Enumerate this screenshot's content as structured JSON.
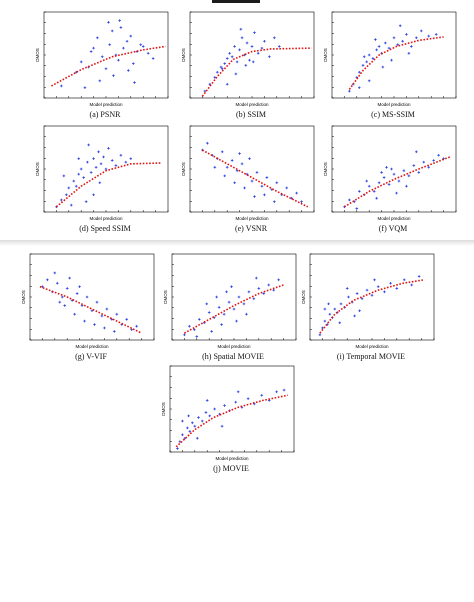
{
  "colors": {
    "points": "#2b3fe0",
    "fit": "#e01414",
    "axis": "#000000"
  },
  "chart_data": [
    {
      "type": "scatter",
      "caption": "(a) PSNR",
      "xlabel": "Model prediction",
      "ylabel": "DMOS",
      "xlim": [
        0,
        1
      ],
      "ylim": [
        0,
        1
      ],
      "curve": {
        "x": [
          0.06,
          0.3,
          0.55,
          0.8,
          0.98
        ],
        "y": [
          0.14,
          0.33,
          0.48,
          0.56,
          0.6
        ]
      },
      "points": {
        "x": [
          0.14,
          0.26,
          0.3,
          0.36,
          0.4,
          0.43,
          0.47,
          0.5,
          0.53,
          0.55,
          0.58,
          0.6,
          0.62,
          0.64,
          0.67,
          0.7,
          0.72,
          0.75,
          0.78,
          0.8,
          0.84,
          0.88,
          0.45,
          0.56,
          0.68,
          0.52,
          0.61,
          0.73,
          0.38,
          0.33
        ],
        "y": [
          0.14,
          0.3,
          0.42,
          0.36,
          0.58,
          0.7,
          0.48,
          0.34,
          0.62,
          0.78,
          0.5,
          0.44,
          0.82,
          0.58,
          0.66,
          0.72,
          0.4,
          0.54,
          0.62,
          0.6,
          0.52,
          0.46,
          0.2,
          0.26,
          0.32,
          0.88,
          0.9,
          0.18,
          0.54,
          0.12
        ]
      }
    },
    {
      "type": "scatter",
      "caption": "(b) SSIM",
      "xlabel": "Model prediction",
      "ylabel": "DMOS",
      "xlim": [
        0,
        1
      ],
      "ylim": [
        0,
        1
      ],
      "curve": {
        "x": [
          0.1,
          0.22,
          0.35,
          0.5,
          0.65,
          0.98
        ],
        "y": [
          0.02,
          0.25,
          0.45,
          0.54,
          0.57,
          0.58
        ]
      },
      "points": {
        "x": [
          0.12,
          0.16,
          0.2,
          0.22,
          0.25,
          0.28,
          0.3,
          0.32,
          0.34,
          0.36,
          0.38,
          0.4,
          0.42,
          0.44,
          0.46,
          0.48,
          0.5,
          0.52,
          0.55,
          0.58,
          0.6,
          0.64,
          0.68,
          0.72,
          0.3,
          0.26,
          0.37,
          0.45,
          0.51,
          0.41
        ],
        "y": [
          0.08,
          0.16,
          0.24,
          0.3,
          0.36,
          0.4,
          0.46,
          0.52,
          0.48,
          0.6,
          0.42,
          0.56,
          0.7,
          0.5,
          0.64,
          0.44,
          0.6,
          0.76,
          0.52,
          0.58,
          0.66,
          0.48,
          0.7,
          0.6,
          0.16,
          0.34,
          0.28,
          0.38,
          0.42,
          0.8
        ]
      }
    },
    {
      "type": "scatter",
      "caption": "(c) MS-SSIM",
      "xlabel": "Model prediction",
      "ylabel": "DMOS",
      "xlim": [
        0,
        1
      ],
      "ylim": [
        0,
        1
      ],
      "curve": {
        "x": [
          0.14,
          0.25,
          0.38,
          0.52,
          0.7,
          0.9
        ],
        "y": [
          0.1,
          0.32,
          0.5,
          0.6,
          0.67,
          0.71
        ]
      },
      "points": {
        "x": [
          0.14,
          0.17,
          0.2,
          0.22,
          0.25,
          0.28,
          0.3,
          0.33,
          0.36,
          0.38,
          0.4,
          0.43,
          0.46,
          0.5,
          0.53,
          0.57,
          0.6,
          0.64,
          0.68,
          0.72,
          0.78,
          0.84,
          0.22,
          0.3,
          0.41,
          0.48,
          0.35,
          0.26,
          0.55,
          0.62
        ],
        "y": [
          0.08,
          0.16,
          0.24,
          0.3,
          0.38,
          0.42,
          0.5,
          0.46,
          0.56,
          0.6,
          0.52,
          0.64,
          0.58,
          0.7,
          0.62,
          0.66,
          0.74,
          0.6,
          0.7,
          0.78,
          0.72,
          0.74,
          0.12,
          0.2,
          0.36,
          0.44,
          0.68,
          0.48,
          0.84,
          0.52
        ]
      }
    },
    {
      "type": "scatter",
      "caption": "(d) Speed SSIM",
      "xlabel": "Model prediction",
      "ylabel": "DMOS",
      "xlim": [
        0,
        1
      ],
      "ylim": [
        0,
        1
      ],
      "curve": {
        "x": [
          0.1,
          0.3,
          0.5,
          0.7,
          0.95
        ],
        "y": [
          0.06,
          0.3,
          0.48,
          0.56,
          0.57
        ]
      },
      "points": {
        "x": [
          0.1,
          0.14,
          0.18,
          0.2,
          0.24,
          0.26,
          0.28,
          0.3,
          0.32,
          0.35,
          0.38,
          0.4,
          0.42,
          0.44,
          0.46,
          0.48,
          0.5,
          0.52,
          0.55,
          0.58,
          0.62,
          0.66,
          0.7,
          0.22,
          0.34,
          0.4,
          0.16,
          0.28,
          0.45,
          0.36
        ],
        "y": [
          0.06,
          0.14,
          0.2,
          0.28,
          0.36,
          0.3,
          0.44,
          0.5,
          0.4,
          0.58,
          0.46,
          0.62,
          0.52,
          0.7,
          0.56,
          0.64,
          0.5,
          0.74,
          0.6,
          0.54,
          0.66,
          0.58,
          0.62,
          0.08,
          0.12,
          0.2,
          0.42,
          0.62,
          0.34,
          0.78
        ]
      }
    },
    {
      "type": "scatter",
      "caption": "(e) VSNR",
      "xlabel": "Model prediction",
      "ylabel": "DMOS",
      "xlim": [
        0,
        1
      ],
      "ylim": [
        0,
        1
      ],
      "curve": {
        "x": [
          0.1,
          0.3,
          0.5,
          0.7,
          0.95
        ],
        "y": [
          0.72,
          0.56,
          0.4,
          0.24,
          0.06
        ]
      },
      "points": {
        "x": [
          0.1,
          0.14,
          0.18,
          0.22,
          0.26,
          0.3,
          0.34,
          0.38,
          0.42,
          0.46,
          0.5,
          0.54,
          0.58,
          0.62,
          0.66,
          0.7,
          0.74,
          0.78,
          0.82,
          0.86,
          0.9,
          0.2,
          0.28,
          0.36,
          0.44,
          0.52,
          0.6,
          0.68,
          0.48,
          0.4
        ],
        "y": [
          0.72,
          0.8,
          0.66,
          0.62,
          0.7,
          0.52,
          0.6,
          0.48,
          0.56,
          0.44,
          0.36,
          0.46,
          0.3,
          0.4,
          0.26,
          0.34,
          0.2,
          0.28,
          0.16,
          0.22,
          0.12,
          0.52,
          0.42,
          0.34,
          0.28,
          0.18,
          0.2,
          0.12,
          0.62,
          0.68
        ]
      }
    },
    {
      "type": "scatter",
      "caption": "(f) VQM",
      "xlabel": "Model prediction",
      "ylabel": "DMOS",
      "xlim": [
        0,
        1
      ],
      "ylim": [
        0,
        1
      ],
      "curve": {
        "x": [
          0.1,
          0.3,
          0.5,
          0.7,
          0.95
        ],
        "y": [
          0.06,
          0.24,
          0.38,
          0.5,
          0.64
        ]
      },
      "points": {
        "x": [
          0.1,
          0.14,
          0.18,
          0.22,
          0.26,
          0.3,
          0.34,
          0.38,
          0.42,
          0.46,
          0.5,
          0.54,
          0.58,
          0.62,
          0.66,
          0.7,
          0.74,
          0.78,
          0.82,
          0.86,
          0.9,
          0.2,
          0.28,
          0.36,
          0.44,
          0.52,
          0.6,
          0.68,
          0.48,
          0.4
        ],
        "y": [
          0.06,
          0.14,
          0.12,
          0.24,
          0.2,
          0.3,
          0.24,
          0.34,
          0.4,
          0.32,
          0.44,
          0.36,
          0.48,
          0.42,
          0.54,
          0.46,
          0.58,
          0.52,
          0.6,
          0.66,
          0.62,
          0.04,
          0.36,
          0.16,
          0.52,
          0.22,
          0.3,
          0.7,
          0.5,
          0.46
        ]
      }
    },
    {
      "type": "scatter",
      "caption": "(g) V-VIF",
      "xlabel": "Model prediction",
      "ylabel": "DMOS",
      "xlim": [
        0,
        1
      ],
      "ylim": [
        0,
        1
      ],
      "curve": {
        "x": [
          0.08,
          0.3,
          0.5,
          0.7,
          0.9
        ],
        "y": [
          0.62,
          0.5,
          0.36,
          0.22,
          0.08
        ]
      },
      "points": {
        "x": [
          0.1,
          0.14,
          0.18,
          0.22,
          0.26,
          0.3,
          0.34,
          0.38,
          0.42,
          0.46,
          0.5,
          0.54,
          0.58,
          0.62,
          0.66,
          0.7,
          0.74,
          0.78,
          0.82,
          0.86,
          0.2,
          0.28,
          0.36,
          0.44,
          0.52,
          0.6,
          0.68,
          0.32,
          0.4,
          0.24
        ],
        "y": [
          0.62,
          0.7,
          0.56,
          0.66,
          0.5,
          0.6,
          0.46,
          0.54,
          0.4,
          0.5,
          0.34,
          0.44,
          0.28,
          0.36,
          0.24,
          0.3,
          0.18,
          0.24,
          0.12,
          0.16,
          0.78,
          0.4,
          0.3,
          0.22,
          0.18,
          0.14,
          0.1,
          0.72,
          0.62,
          0.44
        ]
      }
    },
    {
      "type": "scatter",
      "caption": "(h) Spatial MOVIE",
      "xlabel": "Model prediction",
      "ylabel": "DMOS",
      "xlim": [
        0,
        1
      ],
      "ylim": [
        0,
        1
      ],
      "curve": {
        "x": [
          0.1,
          0.3,
          0.5,
          0.7,
          0.9
        ],
        "y": [
          0.08,
          0.24,
          0.4,
          0.54,
          0.64
        ]
      },
      "points": {
        "x": [
          0.1,
          0.14,
          0.18,
          0.22,
          0.26,
          0.3,
          0.34,
          0.38,
          0.42,
          0.46,
          0.5,
          0.54,
          0.58,
          0.62,
          0.66,
          0.7,
          0.74,
          0.78,
          0.82,
          0.86,
          0.2,
          0.28,
          0.36,
          0.44,
          0.52,
          0.6,
          0.68,
          0.32,
          0.4,
          0.48
        ],
        "y": [
          0.06,
          0.16,
          0.12,
          0.24,
          0.2,
          0.32,
          0.26,
          0.38,
          0.3,
          0.44,
          0.36,
          0.5,
          0.42,
          0.56,
          0.48,
          0.6,
          0.54,
          0.64,
          0.58,
          0.7,
          0.04,
          0.42,
          0.5,
          0.56,
          0.22,
          0.3,
          0.72,
          0.1,
          0.18,
          0.62
        ]
      }
    },
    {
      "type": "scatter",
      "caption": "(i) Temporal MOVIE",
      "xlabel": "Model prediction",
      "ylabel": "DMOS",
      "xlim": [
        0,
        1
      ],
      "ylim": [
        0,
        1
      ],
      "curve": {
        "x": [
          0.08,
          0.2,
          0.35,
          0.55,
          0.75,
          0.92
        ],
        "y": [
          0.08,
          0.3,
          0.46,
          0.58,
          0.66,
          0.7
        ]
      },
      "points": {
        "x": [
          0.08,
          0.1,
          0.12,
          0.14,
          0.16,
          0.18,
          0.2,
          0.22,
          0.25,
          0.28,
          0.31,
          0.34,
          0.38,
          0.42,
          0.46,
          0.5,
          0.55,
          0.6,
          0.65,
          0.7,
          0.76,
          0.82,
          0.88,
          0.15,
          0.24,
          0.3,
          0.4,
          0.52,
          0.12,
          0.36
        ],
        "y": [
          0.06,
          0.14,
          0.22,
          0.18,
          0.3,
          0.26,
          0.36,
          0.32,
          0.42,
          0.38,
          0.5,
          0.44,
          0.54,
          0.48,
          0.58,
          0.52,
          0.62,
          0.56,
          0.66,
          0.6,
          0.7,
          0.64,
          0.74,
          0.42,
          0.2,
          0.6,
          0.34,
          0.7,
          0.36,
          0.28
        ]
      }
    },
    {
      "type": "scatter",
      "caption": "(j) MOVIE",
      "xlabel": "Model prediction",
      "ylabel": "DMOS",
      "xlim": [
        0,
        1
      ],
      "ylim": [
        0,
        1
      ],
      "curve": {
        "x": [
          0.05,
          0.2,
          0.35,
          0.55,
          0.75,
          0.95
        ],
        "y": [
          0.06,
          0.26,
          0.4,
          0.52,
          0.6,
          0.66
        ]
      },
      "points": {
        "x": [
          0.06,
          0.08,
          0.1,
          0.12,
          0.14,
          0.16,
          0.18,
          0.2,
          0.23,
          0.26,
          0.29,
          0.32,
          0.36,
          0.4,
          0.44,
          0.48,
          0.53,
          0.58,
          0.63,
          0.68,
          0.74,
          0.8,
          0.86,
          0.92,
          0.1,
          0.15,
          0.22,
          0.3,
          0.42,
          0.55
        ],
        "y": [
          0.04,
          0.12,
          0.2,
          0.16,
          0.28,
          0.24,
          0.34,
          0.3,
          0.4,
          0.36,
          0.46,
          0.42,
          0.5,
          0.44,
          0.54,
          0.48,
          0.58,
          0.52,
          0.62,
          0.56,
          0.66,
          0.6,
          0.7,
          0.72,
          0.36,
          0.42,
          0.16,
          0.6,
          0.3,
          0.7
        ]
      }
    }
  ]
}
